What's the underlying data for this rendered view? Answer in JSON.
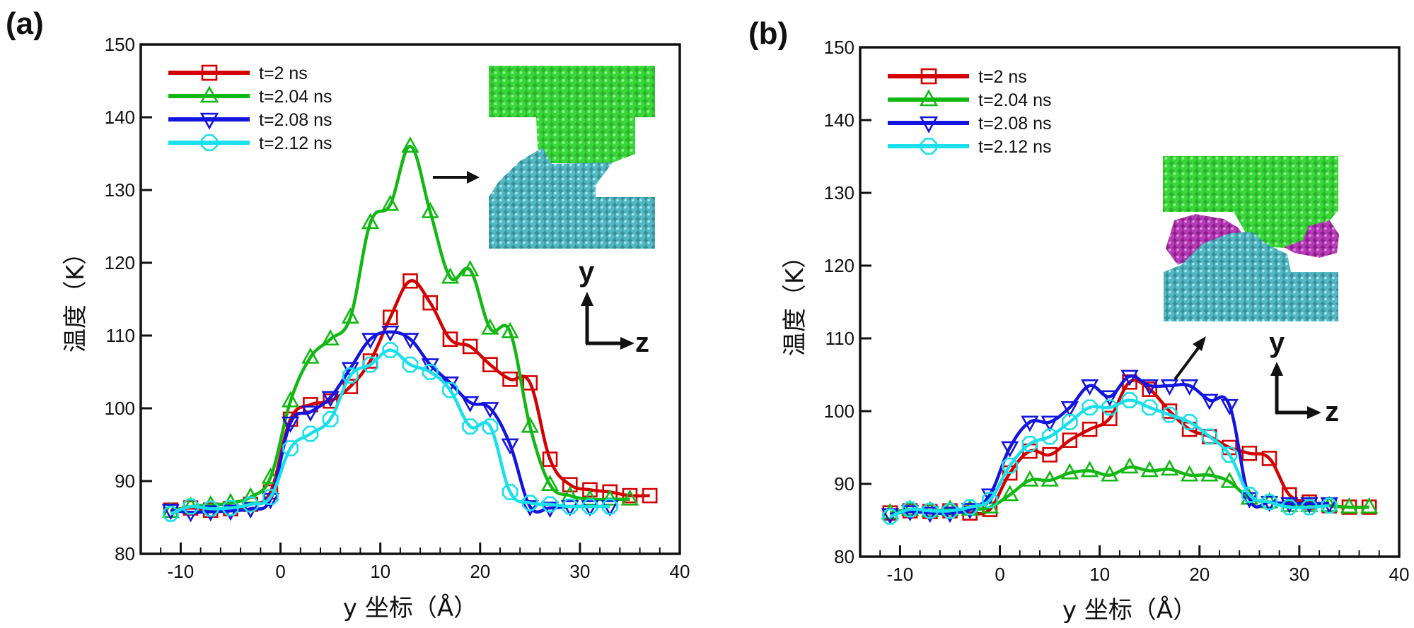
{
  "figure": {
    "panels": [
      "(a)",
      "(b)"
    ]
  },
  "chart_data": [
    {
      "type": "line",
      "panel": "(a)",
      "title": "",
      "xlabel": "y 坐标（Å）",
      "ylabel": "温度（K）",
      "xlim": [
        -14,
        40
      ],
      "ylim": [
        80,
        150
      ],
      "xticks": [
        -10,
        0,
        10,
        20,
        30,
        40
      ],
      "yticks": [
        80,
        90,
        100,
        110,
        120,
        130,
        140,
        150
      ],
      "legend": "top-left",
      "inset": {
        "description": "atomistic snapshot, green upper block and teal lower block bonded",
        "arrow": "right",
        "axes": [
          "y",
          "z"
        ]
      },
      "series": [
        {
          "name": "t=2 ns",
          "color": "#d40000",
          "marker": "square",
          "x": [
            -11,
            -9,
            -7,
            -5,
            -3,
            -1,
            1,
            3,
            5,
            7,
            9,
            11,
            13,
            15,
            17,
            19,
            21,
            23,
            25,
            27,
            29,
            31,
            33,
            35,
            37
          ],
          "y": [
            86,
            86.3,
            86,
            86.2,
            86.8,
            88.5,
            98.5,
            100.5,
            101,
            103,
            106.5,
            112.5,
            117.5,
            114.5,
            109.5,
            108.5,
            106,
            104,
            103.5,
            93,
            89.5,
            88.8,
            88.5,
            88,
            88
          ]
        },
        {
          "name": "t=2.04 ns",
          "color": "#12b812",
          "marker": "triangle-up",
          "x": [
            -11,
            -9,
            -7,
            -5,
            -3,
            -1,
            1,
            3,
            5,
            7,
            9,
            11,
            13,
            15,
            17,
            19,
            21,
            23,
            25,
            27,
            29,
            31,
            33,
            35
          ],
          "y": [
            85.8,
            86.5,
            86.7,
            87,
            87.8,
            90.5,
            101,
            107,
            109.5,
            112.5,
            125.5,
            128,
            136,
            127,
            118,
            119,
            111,
            110.5,
            97.5,
            89.5,
            88,
            87.5,
            87.5,
            87.5
          ]
        },
        {
          "name": "t=2.08 ns",
          "color": "#1414e0",
          "marker": "triangle-down",
          "x": [
            -11,
            -9,
            -7,
            -5,
            -3,
            -1,
            1,
            3,
            5,
            7,
            9,
            11,
            13,
            15,
            17,
            19,
            21,
            23,
            25,
            27,
            29,
            31,
            33
          ],
          "y": [
            86,
            85.7,
            85.8,
            85.9,
            86.2,
            87.5,
            98,
            99.5,
            101.5,
            105.5,
            109.5,
            110.5,
            109.5,
            106,
            103.5,
            100.8,
            100,
            95,
            86.5,
            86.3,
            86.5,
            86.5,
            86.5
          ]
        },
        {
          "name": "t=2.12 ns",
          "color": "#19e0ea",
          "marker": "circle",
          "x": [
            -11,
            -9,
            -7,
            -5,
            -3,
            -1,
            1,
            3,
            5,
            7,
            9,
            11,
            13,
            15,
            17,
            19,
            21,
            23,
            25,
            27,
            29,
            31,
            33
          ],
          "y": [
            85.5,
            86.5,
            86.2,
            86.3,
            86.8,
            87.8,
            94.5,
            96.5,
            98.5,
            104.5,
            106,
            108,
            106,
            105,
            102.5,
            97.5,
            97.5,
            88.5,
            87,
            86.8,
            86.5,
            86.5,
            86.5
          ]
        }
      ]
    },
    {
      "type": "line",
      "panel": "(b)",
      "title": "",
      "xlabel": "y 坐标（Å）",
      "ylabel": "温度（K）",
      "xlim": [
        -14,
        40
      ],
      "ylim": [
        80,
        150
      ],
      "xticks": [
        -10,
        0,
        10,
        20,
        30,
        40
      ],
      "yticks": [
        80,
        90,
        100,
        110,
        120,
        130,
        140,
        150
      ],
      "legend": "top-left",
      "inset": {
        "description": "atomistic snapshot, green upper block, teal lower block with magenta debris",
        "arrow": "up-right",
        "axes": [
          "y",
          "z"
        ]
      },
      "series": [
        {
          "name": "t=2 ns",
          "color": "#d40000",
          "marker": "square",
          "x": [
            -11,
            -9,
            -7,
            -5,
            -3,
            -1,
            1,
            3,
            5,
            7,
            9,
            11,
            13,
            15,
            17,
            19,
            21,
            23,
            25,
            27,
            29,
            31,
            33,
            35,
            37
          ],
          "y": [
            86,
            86.3,
            86.2,
            86.3,
            86,
            86.5,
            91.5,
            94.5,
            94,
            96,
            97.5,
            99,
            104,
            103,
            100,
            97.5,
            96.5,
            95,
            94.2,
            93.5,
            88.5,
            87.5,
            87,
            86.8,
            86.8
          ]
        },
        {
          "name": "t=2.04 ns",
          "color": "#12b812",
          "marker": "triangle-up",
          "x": [
            -11,
            -9,
            -7,
            -5,
            -3,
            -1,
            1,
            3,
            5,
            7,
            9,
            11,
            13,
            15,
            17,
            19,
            21,
            23,
            25,
            27,
            29,
            31,
            33,
            35,
            37
          ],
          "y": [
            86,
            86.5,
            86.3,
            86.5,
            86.5,
            86.8,
            88.5,
            90.5,
            90.5,
            91.5,
            91.8,
            91.2,
            92.3,
            91.8,
            92,
            91.2,
            91.2,
            90.3,
            88,
            87.5,
            87,
            87,
            87,
            86.8,
            86.8
          ]
        },
        {
          "name": "t=2.08 ns",
          "color": "#1414e0",
          "marker": "triangle-down",
          "x": [
            -11,
            -9,
            -7,
            -5,
            -3,
            -1,
            1,
            3,
            5,
            7,
            9,
            11,
            13,
            15,
            17,
            19,
            21,
            23,
            25,
            27,
            29,
            31,
            33
          ],
          "y": [
            85.8,
            86.2,
            86,
            86,
            86.5,
            88.5,
            95,
            98.5,
            98.5,
            100.5,
            103.5,
            102,
            104.8,
            103.5,
            103.5,
            103.5,
            101.5,
            100.8,
            88,
            87.5,
            87.3,
            87.3,
            87.3
          ]
        },
        {
          "name": "t=2.12 ns",
          "color": "#19e0ea",
          "marker": "circle",
          "x": [
            -11,
            -9,
            -7,
            -5,
            -3,
            -1,
            1,
            3,
            5,
            7,
            9,
            11,
            13,
            15,
            17,
            19,
            21,
            23,
            25,
            27,
            29,
            31,
            33
          ],
          "y": [
            85.5,
            86.5,
            86.3,
            86.3,
            86.8,
            87.8,
            92.5,
            95.5,
            96.5,
            98.5,
            100.5,
            100.5,
            101.5,
            100.5,
            99.5,
            98.5,
            96.5,
            94,
            88.5,
            87.5,
            86.8,
            86.8,
            87
          ]
        }
      ]
    }
  ]
}
